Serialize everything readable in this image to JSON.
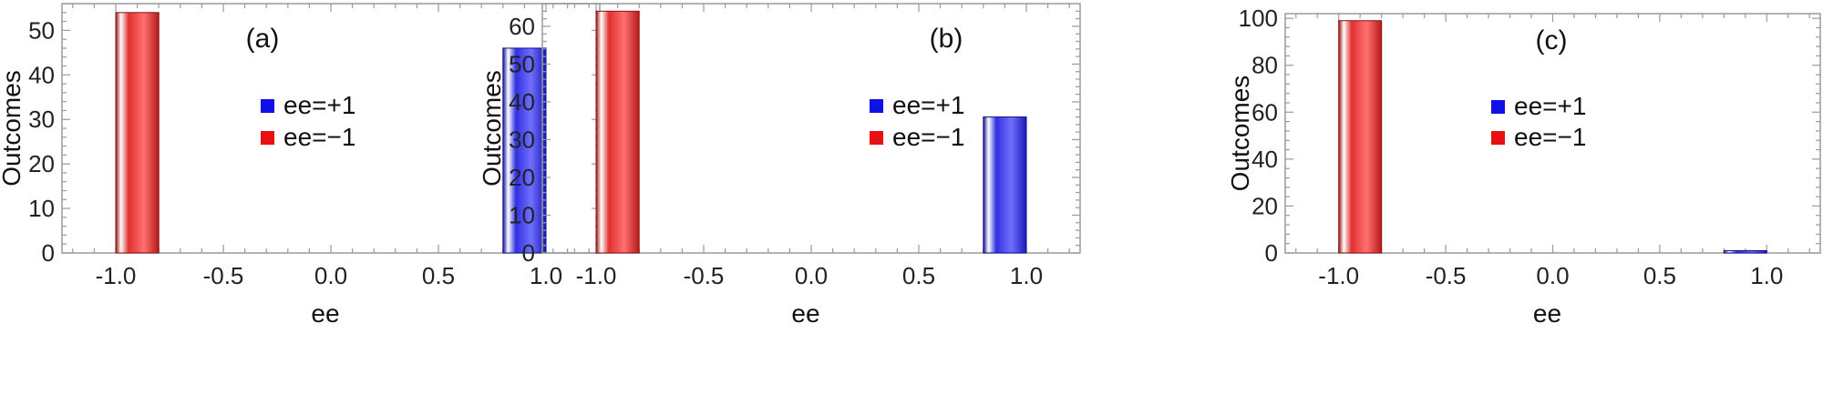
{
  "chart_data": [
    {
      "type": "bar",
      "panel_label": "(a)",
      "xlabel": "ee",
      "ylabel": "Outcomes",
      "xlim": [
        -1.25,
        1.25
      ],
      "ylim": [
        0,
        56
      ],
      "x_ticks": [
        -1.0,
        -0.5,
        0.0,
        0.5,
        1.0
      ],
      "x_tick_labels": [
        "-1.0",
        "-0.5",
        "0.0",
        "0.5",
        "1.0"
      ],
      "y_ticks": [
        0,
        10,
        20,
        30,
        40,
        50
      ],
      "bar_width": 0.2,
      "series": [
        {
          "name": "ee=+1",
          "x": 0.9,
          "value": 46,
          "color": "#2a2ad6"
        },
        {
          "name": "ee=−1",
          "x": -0.9,
          "value": 54,
          "color": "#e52a2a"
        }
      ],
      "legend": [
        {
          "label": "ee=+1",
          "color": "#1010e8"
        },
        {
          "label": "ee=−1",
          "color": "#e81010"
        }
      ]
    },
    {
      "type": "bar",
      "panel_label": "(b)",
      "xlabel": "ee",
      "ylabel": "Outcomes",
      "xlim": [
        -1.25,
        1.25
      ],
      "ylim": [
        0,
        66
      ],
      "x_ticks": [
        -1.0,
        -0.5,
        0.0,
        0.5,
        1.0
      ],
      "x_tick_labels": [
        "-1.0",
        "-0.5",
        "0.0",
        "0.5",
        "1.0"
      ],
      "y_ticks": [
        0,
        10,
        20,
        30,
        40,
        50,
        60
      ],
      "bar_width": 0.2,
      "series": [
        {
          "name": "ee=+1",
          "x": 0.9,
          "value": 36,
          "color": "#2a2ad6"
        },
        {
          "name": "ee=−1",
          "x": -0.9,
          "value": 64,
          "color": "#e52a2a"
        }
      ],
      "legend": [
        {
          "label": "ee=+1",
          "color": "#1010e8"
        },
        {
          "label": "ee=−1",
          "color": "#e81010"
        }
      ]
    },
    {
      "type": "bar",
      "panel_label": "(c)",
      "xlabel": "ee",
      "ylabel": "Outcomes",
      "xlim": [
        -1.25,
        1.25
      ],
      "ylim": [
        0,
        102
      ],
      "x_ticks": [
        -1.0,
        -0.5,
        0.0,
        0.5,
        1.0
      ],
      "x_tick_labels": [
        "-1.0",
        "-0.5",
        "0.0",
        "0.5",
        "1.0"
      ],
      "y_ticks": [
        0,
        20,
        40,
        60,
        80,
        100
      ],
      "bar_width": 0.2,
      "series": [
        {
          "name": "ee=+1",
          "x": 0.9,
          "value": 1,
          "color": "#2a2ad6"
        },
        {
          "name": "ee=−1",
          "x": -0.9,
          "value": 99,
          "color": "#e52a2a"
        }
      ],
      "legend": [
        {
          "label": "ee=+1",
          "color": "#1010e8"
        },
        {
          "label": "ee=−1",
          "color": "#e81010"
        }
      ]
    }
  ]
}
